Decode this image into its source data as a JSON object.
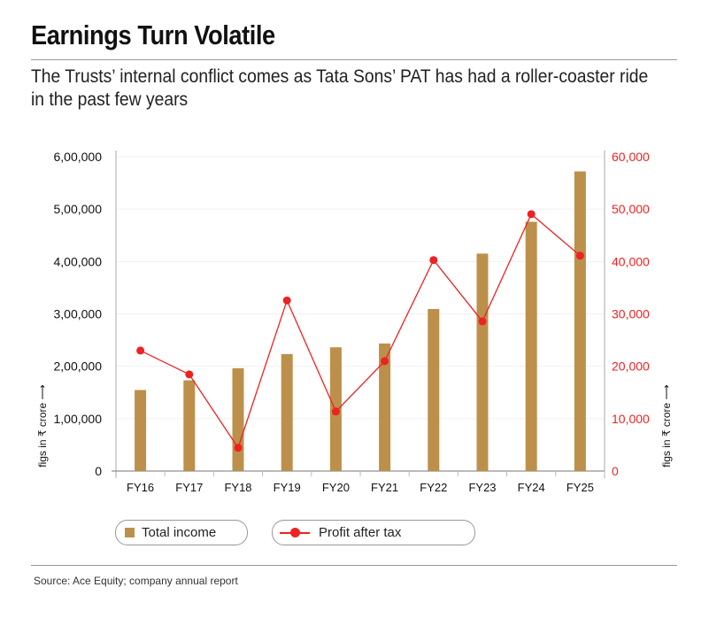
{
  "title": "Earnings Turn Volatile",
  "subtitle": "The Trusts’ internal conflict comes as Tata Sons’ PAT has had a roller-coaster ride in the past few years",
  "source": "Source: Ace Equity; company annual report",
  "colors": {
    "bar": "#BC904A",
    "line": "#EE2222",
    "right_axis": "#EE2222"
  },
  "chart_data": {
    "type": "bar+line",
    "categories": [
      "FY16",
      "FY17",
      "FY18",
      "FY19",
      "FY20",
      "FY21",
      "FY22",
      "FY23",
      "FY24",
      "FY25"
    ],
    "series": [
      {
        "name": "Total income",
        "type": "bar",
        "axis": "left",
        "values": [
          154700,
          173200,
          196300,
          223300,
          236200,
          243500,
          309300,
          415100,
          475800,
          572000
        ]
      },
      {
        "name": "Profit after tax",
        "type": "line",
        "axis": "right",
        "values": [
          23000,
          18450,
          4440,
          32560,
          11360,
          20980,
          40270,
          28570,
          49040,
          41110
        ]
      }
    ],
    "left_axis": {
      "ylim": [
        0,
        600000
      ],
      "ticks": [
        "0",
        "1,00,000",
        "2,00,000",
        "3,00,000",
        "4,00,000",
        "5,00,000",
        "6,00,000"
      ],
      "label": "figs in ₹ crore ⟶"
    },
    "right_axis": {
      "ylim": [
        0,
        60000
      ],
      "ticks": [
        "0",
        "10,000",
        "20,000",
        "30,000",
        "40,000",
        "50,000",
        "60,000"
      ],
      "label": "figs in ₹ crore ⟶"
    },
    "legend": [
      "Total income",
      "Profit after tax"
    ],
    "legend_position": "bottom",
    "grid": true
  }
}
